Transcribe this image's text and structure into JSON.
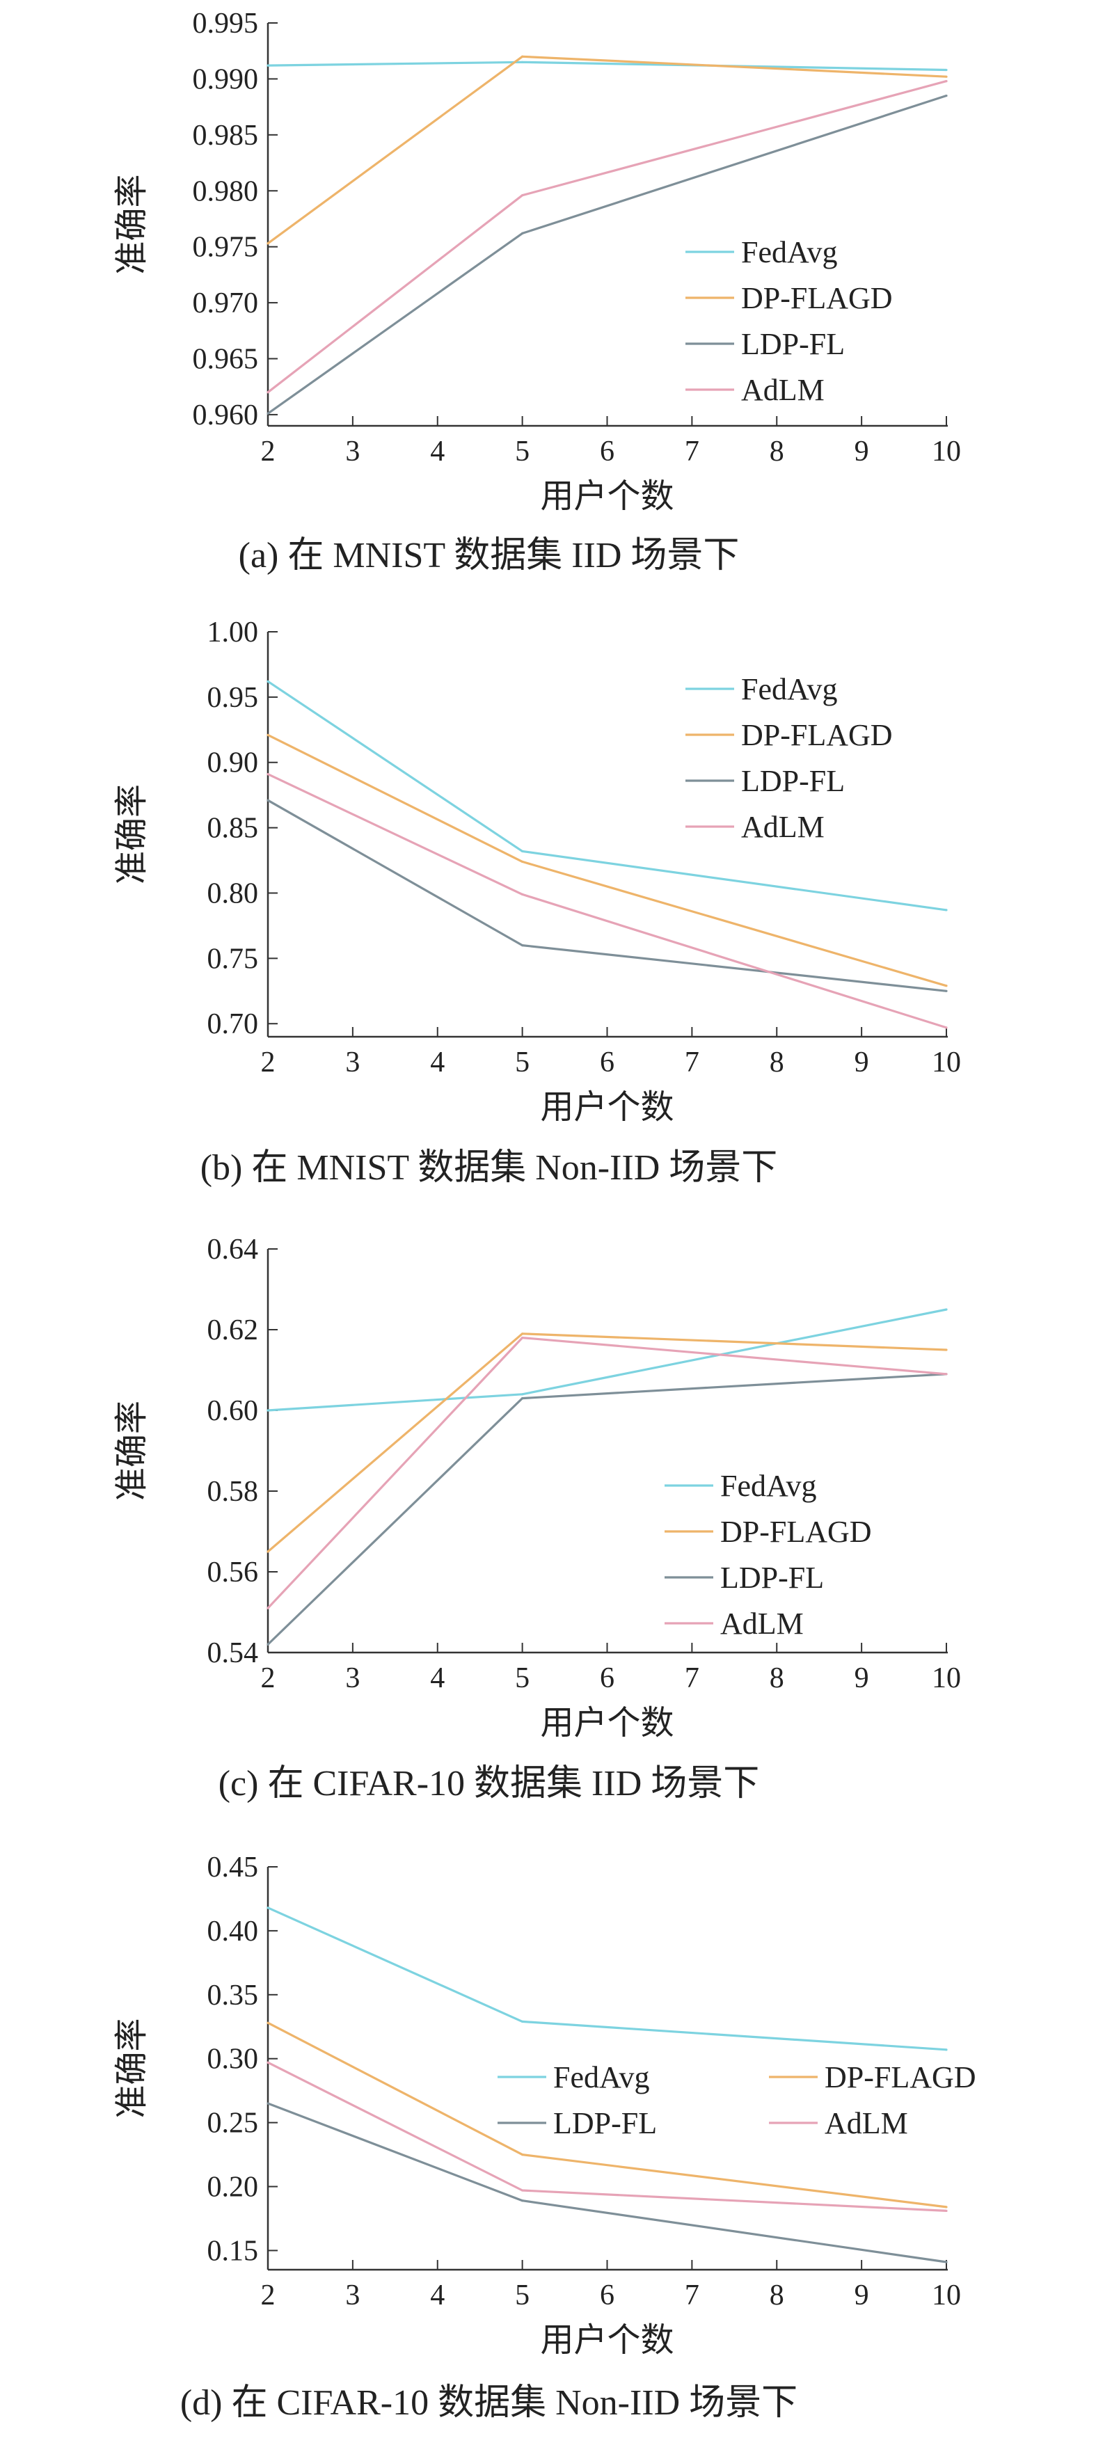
{
  "figure": {
    "ylabel_text": "准确率"
  },
  "chart_data": [
    {
      "type": "line",
      "id": "a",
      "title": "(a) 在 MNIST 数据集 IID 场景下",
      "xlabel": "用户个数",
      "ylabel": "准确率",
      "x": [
        2,
        5,
        10
      ],
      "xticks": [
        "2",
        "3",
        "4",
        "5",
        "6",
        "7",
        "8",
        "9",
        "10"
      ],
      "xlim": [
        2,
        10
      ],
      "ylim": [
        0.959,
        0.995
      ],
      "yticks": [
        "0.960",
        "0.965",
        "0.970",
        "0.975",
        "0.980",
        "0.985",
        "0.990",
        "0.995"
      ],
      "legend_position": "right-middle",
      "legend_columns": 1,
      "grid": false,
      "series": [
        {
          "name": "FedAvg",
          "color": "#7dd3e0",
          "values": [
            0.9912,
            0.9915,
            0.9908
          ]
        },
        {
          "name": "DP-FLAGD",
          "color": "#eeb46a",
          "values": [
            0.9753,
            0.992,
            0.9902
          ]
        },
        {
          "name": "LDP-FL",
          "color": "#7e8f98",
          "values": [
            0.9601,
            0.9762,
            0.9885
          ]
        },
        {
          "name": "AdLM",
          "color": "#e6a3b6",
          "values": [
            0.962,
            0.9796,
            0.9898
          ]
        }
      ]
    },
    {
      "type": "line",
      "id": "b",
      "title": "(b)  在 MNIST 数据集 Non-IID 场景下",
      "xlabel": "用户个数",
      "ylabel": "准确率",
      "x": [
        2,
        5,
        10
      ],
      "xticks": [
        "2",
        "3",
        "4",
        "5",
        "6",
        "7",
        "8",
        "9",
        "10"
      ],
      "xlim": [
        2,
        10
      ],
      "ylim": [
        0.69,
        1.0
      ],
      "yticks": [
        "0.70",
        "0.75",
        "0.80",
        "0.85",
        "0.90",
        "0.95",
        "1.00"
      ],
      "legend_position": "top-right",
      "legend_columns": 1,
      "grid": false,
      "series": [
        {
          "name": "FedAvg",
          "color": "#7dd3e0",
          "values": [
            0.962,
            0.832,
            0.787
          ]
        },
        {
          "name": "DP-FLAGD",
          "color": "#eeb46a",
          "values": [
            0.921,
            0.824,
            0.729
          ]
        },
        {
          "name": "LDP-FL",
          "color": "#7e8f98",
          "values": [
            0.871,
            0.76,
            0.725
          ]
        },
        {
          "name": "AdLM",
          "color": "#e6a3b6",
          "values": [
            0.891,
            0.799,
            0.697
          ]
        }
      ]
    },
    {
      "type": "line",
      "id": "c",
      "title": "(c) 在 CIFAR-10 数据集 IID 场景下",
      "xlabel": "用户个数",
      "ylabel": "准确率",
      "x": [
        2,
        5,
        10
      ],
      "xticks": [
        "2",
        "3",
        "4",
        "5",
        "6",
        "7",
        "8",
        "9",
        "10"
      ],
      "xlim": [
        2,
        10
      ],
      "ylim": [
        0.54,
        0.64
      ],
      "yticks": [
        "0.54",
        "0.56",
        "0.58",
        "0.60",
        "0.62",
        "0.64"
      ],
      "legend_position": "bottom-right",
      "legend_columns": 1,
      "grid": false,
      "series": [
        {
          "name": "FedAvg",
          "color": "#7dd3e0",
          "values": [
            0.6,
            0.604,
            0.625
          ]
        },
        {
          "name": "DP-FLAGD",
          "color": "#eeb46a",
          "values": [
            0.565,
            0.619,
            0.615
          ]
        },
        {
          "name": "LDP-FL",
          "color": "#7e8f98",
          "values": [
            0.542,
            0.603,
            0.609
          ]
        },
        {
          "name": "AdLM",
          "color": "#e6a3b6",
          "values": [
            0.551,
            0.618,
            0.609
          ]
        }
      ]
    },
    {
      "type": "line",
      "id": "d",
      "title": "(d) 在 CIFAR-10 数据集 Non-IID 场景下",
      "xlabel": "用户个数",
      "ylabel": "准确率",
      "x": [
        2,
        5,
        10
      ],
      "xticks": [
        "2",
        "3",
        "4",
        "5",
        "6",
        "7",
        "8",
        "9",
        "10"
      ],
      "xlim": [
        2,
        10
      ],
      "ylim": [
        0.135,
        0.45
      ],
      "yticks": [
        "0.15",
        "0.20",
        "0.25",
        "0.30",
        "0.35",
        "0.40",
        "0.45"
      ],
      "legend_position": "right-middle",
      "legend_columns": 2,
      "grid": false,
      "series": [
        {
          "name": "FedAvg",
          "color": "#7dd3e0",
          "values": [
            0.418,
            0.329,
            0.307
          ]
        },
        {
          "name": "DP-FLAGD",
          "color": "#eeb46a",
          "values": [
            0.328,
            0.225,
            0.184
          ]
        },
        {
          "name": "LDP-FL",
          "color": "#7e8f98",
          "values": [
            0.265,
            0.189,
            0.141
          ]
        },
        {
          "name": "AdLM",
          "color": "#e6a3b6",
          "values": [
            0.297,
            0.197,
            0.181
          ]
        }
      ]
    }
  ]
}
